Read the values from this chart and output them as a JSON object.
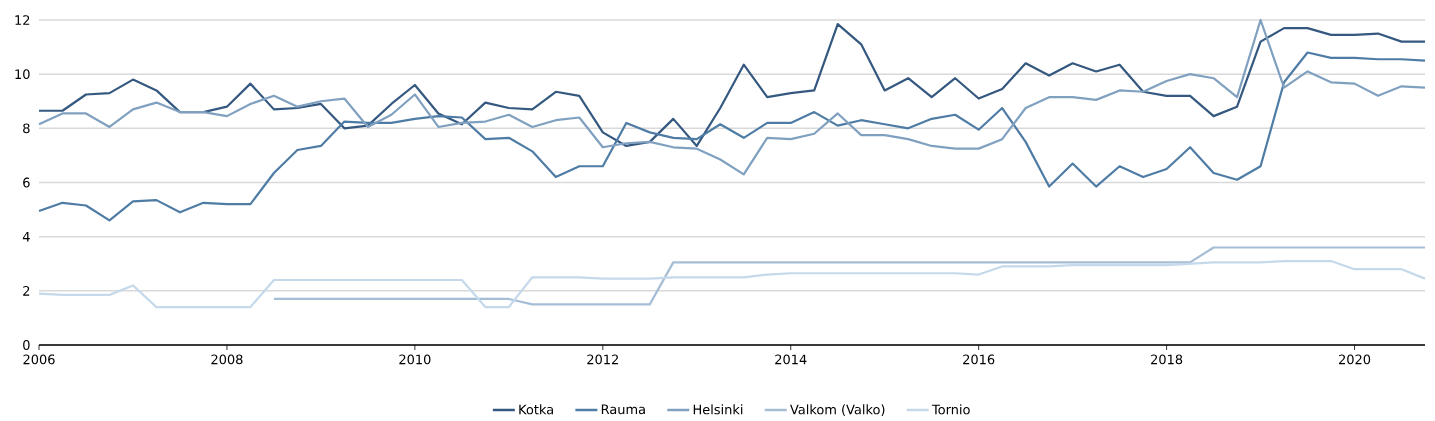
{
  "chart_data": {
    "type": "line",
    "x": [
      2006,
      2006.25,
      2006.5,
      2006.75,
      2007,
      2007.25,
      2007.5,
      2007.75,
      2008,
      2008.25,
      2008.5,
      2008.75,
      2009,
      2009.25,
      2009.5,
      2009.75,
      2010,
      2010.25,
      2010.5,
      2010.75,
      2011,
      2011.25,
      2011.5,
      2011.75,
      2012,
      2012.25,
      2012.5,
      2012.75,
      2013,
      2013.25,
      2013.5,
      2013.75,
      2014,
      2014.25,
      2014.5,
      2014.75,
      2015,
      2015.25,
      2015.5,
      2015.75,
      2016,
      2016.25,
      2016.5,
      2016.75,
      2017,
      2017.25,
      2017.5,
      2017.75,
      2018,
      2018.25,
      2018.5,
      2018.75,
      2019,
      2019.25,
      2019.5,
      2019.75,
      2020,
      2020.25,
      2020.5,
      2020.75
    ],
    "series": [
      {
        "name": "Kotka",
        "color": "#34587f",
        "values": [
          8.65,
          8.65,
          9.25,
          9.3,
          9.8,
          9.4,
          8.6,
          8.6,
          8.8,
          9.65,
          8.7,
          8.75,
          8.9,
          8.0,
          8.1,
          8.9,
          9.6,
          8.55,
          8.15,
          8.95,
          8.75,
          8.7,
          9.35,
          9.2,
          7.85,
          7.35,
          7.5,
          8.35,
          7.35,
          8.75,
          10.35,
          9.15,
          9.3,
          9.4,
          11.85,
          11.1,
          9.4,
          9.85,
          9.15,
          9.85,
          9.1,
          9.45,
          10.4,
          9.95,
          10.4,
          10.1,
          10.35,
          9.35,
          9.2,
          9.2,
          8.45,
          8.8,
          11.2,
          11.7,
          11.7,
          11.45,
          11.45,
          11.5,
          11.2,
          11.2
        ]
      },
      {
        "name": "Rauma",
        "color": "#4f7ca5",
        "values": [
          4.95,
          5.25,
          5.15,
          4.6,
          5.3,
          5.35,
          4.9,
          5.25,
          5.2,
          5.2,
          6.35,
          7.2,
          7.35,
          8.25,
          8.2,
          8.2,
          8.35,
          8.45,
          8.4,
          7.6,
          7.65,
          7.15,
          6.2,
          6.6,
          6.6,
          8.2,
          7.85,
          7.65,
          7.6,
          8.15,
          7.65,
          8.2,
          8.2,
          8.6,
          8.1,
          8.3,
          8.15,
          8.0,
          8.35,
          8.5,
          7.95,
          8.75,
          7.5,
          5.85,
          6.7,
          5.85,
          6.6,
          6.2,
          6.5,
          7.3,
          6.35,
          6.1,
          6.6,
          9.7,
          10.8,
          10.6,
          10.6,
          10.55,
          10.55,
          10.5
        ]
      },
      {
        "name": "Helsinki",
        "color": "#80a0c0",
        "values": [
          8.15,
          8.55,
          8.55,
          8.05,
          8.7,
          8.95,
          8.6,
          8.6,
          8.45,
          8.9,
          9.2,
          8.8,
          9.0,
          9.1,
          8.05,
          8.5,
          9.25,
          8.05,
          8.2,
          8.25,
          8.5,
          8.05,
          8.3,
          8.4,
          7.3,
          7.45,
          7.5,
          7.3,
          7.25,
          6.85,
          6.3,
          7.65,
          7.6,
          7.8,
          8.55,
          7.75,
          7.75,
          7.6,
          7.35,
          7.25,
          7.25,
          7.6,
          8.75,
          9.15,
          9.15,
          9.05,
          9.4,
          9.35,
          9.75,
          10.0,
          9.85,
          9.15,
          12.0,
          9.5,
          10.1,
          9.7,
          9.65,
          9.2,
          9.55,
          9.5
        ]
      },
      {
        "name": "Valkom (Valko)",
        "color": "#a5bdd5",
        "values": [
          null,
          null,
          null,
          null,
          null,
          null,
          null,
          null,
          null,
          null,
          1.7,
          1.7,
          1.7,
          1.7,
          1.7,
          1.7,
          1.7,
          1.7,
          1.7,
          1.7,
          1.7,
          1.5,
          1.5,
          1.5,
          1.5,
          1.5,
          1.5,
          3.05,
          3.05,
          3.05,
          3.05,
          3.05,
          3.05,
          3.05,
          3.05,
          3.05,
          3.05,
          3.05,
          3.05,
          3.05,
          3.05,
          3.05,
          3.05,
          3.05,
          3.05,
          3.05,
          3.05,
          3.05,
          3.05,
          3.05,
          3.6,
          3.6,
          3.6,
          3.6,
          3.6,
          3.6,
          3.6,
          3.6,
          3.6,
          3.6
        ]
      },
      {
        "name": "Tornio",
        "color": "#c5d9eb",
        "values": [
          1.9,
          1.85,
          1.85,
          1.85,
          2.2,
          1.4,
          1.4,
          1.4,
          1.4,
          1.4,
          2.4,
          2.4,
          2.4,
          2.4,
          2.4,
          2.4,
          2.4,
          2.4,
          2.4,
          1.4,
          1.4,
          2.5,
          2.5,
          2.5,
          2.45,
          2.45,
          2.45,
          2.5,
          2.5,
          2.5,
          2.5,
          2.6,
          2.65,
          2.65,
          2.65,
          2.65,
          2.65,
          2.65,
          2.65,
          2.65,
          2.6,
          2.9,
          2.9,
          2.9,
          2.95,
          2.95,
          2.95,
          2.95,
          2.95,
          3.0,
          3.05,
          3.05,
          3.05,
          3.1,
          3.1,
          3.1,
          2.8,
          2.8,
          2.8,
          2.45
        ]
      }
    ],
    "xlim": [
      2006,
      2020.75
    ],
    "ylim": [
      0,
      12
    ],
    "xticks": [
      2006,
      2008,
      2010,
      2012,
      2014,
      2016,
      2018,
      2020
    ],
    "yticks": [
      0,
      2,
      4,
      6,
      8,
      10,
      12
    ],
    "grid": "y",
    "legend": "bottom"
  }
}
